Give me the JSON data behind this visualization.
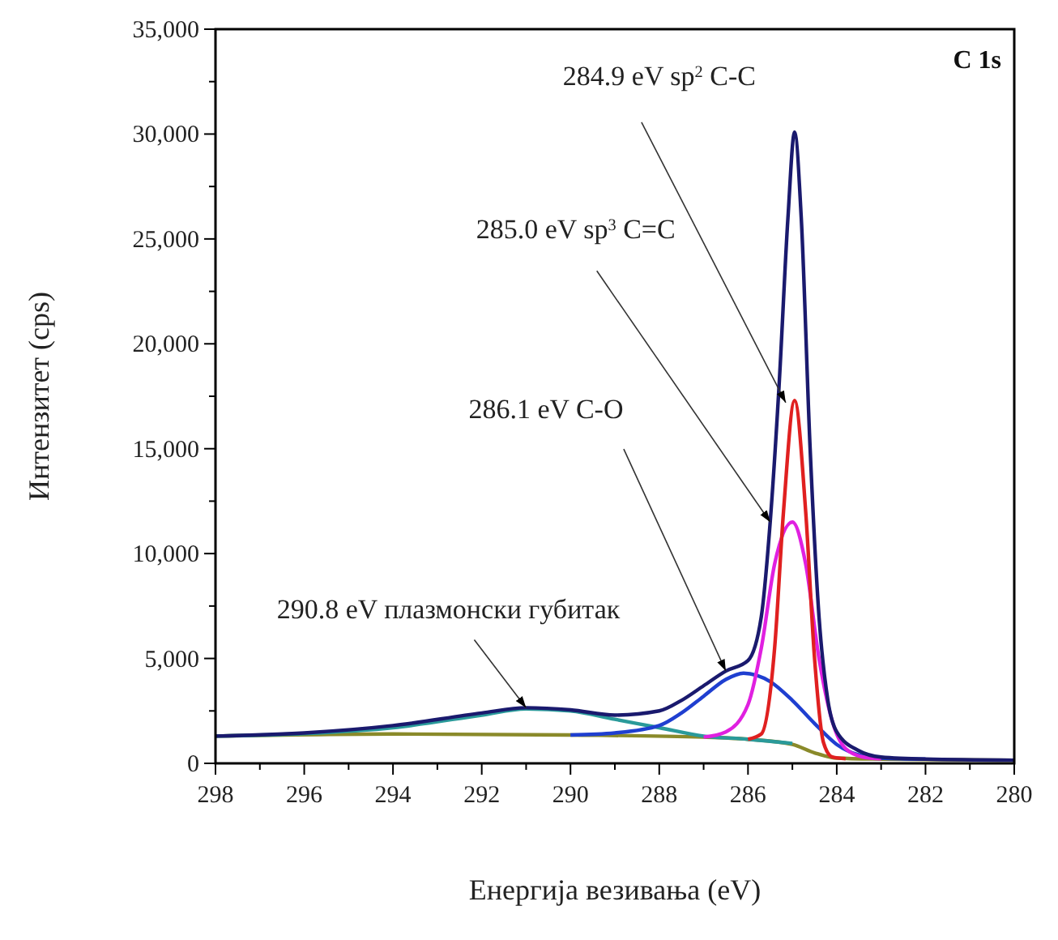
{
  "chart_data": {
    "type": "line",
    "xlabel": "Енергија везивања (eV)",
    "ylabel": "Интензитет (cps)",
    "xlim": [
      298,
      280
    ],
    "ylim": [
      0,
      35000
    ],
    "xticks": [
      298,
      {
        "value": 297,
        "label": null
      },
      296,
      {
        "value": 295,
        "label": null
      },
      294,
      {
        "value": 293,
        "label": null
      },
      292,
      {
        "value": 291,
        "label": null
      },
      290,
      {
        "value": 289,
        "label": null
      },
      288,
      {
        "value": 287,
        "label": null
      },
      286,
      {
        "value": 285,
        "label": null
      },
      284,
      {
        "value": 283,
        "label": null
      },
      282,
      {
        "value": 281,
        "label": null
      },
      280
    ],
    "yticks": [
      {
        "value": 0,
        "label": "0"
      },
      {
        "value": 2500,
        "label": null
      },
      {
        "value": 5000,
        "label": "5,000"
      },
      {
        "value": 7500,
        "label": null
      },
      {
        "value": 10000,
        "label": "10,000"
      },
      {
        "value": 12500,
        "label": null
      },
      {
        "value": 15000,
        "label": "15,000"
      },
      {
        "value": 17500,
        "label": null
      },
      {
        "value": 20000,
        "label": "20,000"
      },
      {
        "value": 22500,
        "label": null
      },
      {
        "value": 25000,
        "label": "25,000"
      },
      {
        "value": 27500,
        "label": null
      },
      {
        "value": 30000,
        "label": "30,000"
      },
      {
        "value": 32500,
        "label": null
      },
      {
        "value": 35000,
        "label": "35,000"
      }
    ],
    "grid": false,
    "marker": "none",
    "line_style": "solid",
    "series": [
      {
        "color": "#8a8a2a",
        "x": [
          298,
          294,
          290,
          287,
          286,
          285,
          284.5,
          284,
          283,
          282,
          280
        ],
        "values": [
          1300,
          1400,
          1350,
          1250,
          1150,
          900,
          500,
          250,
          200,
          180,
          150
        ]
      },
      {
        "color": "#2a9a9a",
        "x": [
          298,
          296,
          294,
          292,
          291,
          290,
          289,
          288,
          287,
          286,
          285
        ],
        "values": [
          1300,
          1420,
          1700,
          2300,
          2600,
          2500,
          2100,
          1700,
          1300,
          1150,
          950
        ]
      },
      {
        "color": "#1f3fd0",
        "x": [
          290,
          289,
          288,
          287.5,
          287,
          286.5,
          286.1,
          285.5,
          285,
          284.5,
          284,
          283.5,
          283,
          282
        ],
        "values": [
          1350,
          1450,
          1800,
          2400,
          3200,
          4000,
          4300,
          3900,
          3000,
          1900,
          900,
          400,
          250,
          200
        ]
      },
      {
        "color": "#e020e0",
        "x": [
          287,
          286.5,
          286,
          285.7,
          285.4,
          285,
          284.7,
          284.4,
          284.1,
          283.8,
          283.4,
          283
        ],
        "values": [
          1250,
          1500,
          2800,
          5500,
          9500,
          11500,
          9500,
          5000,
          2000,
          700,
          300,
          220
        ]
      },
      {
        "color": "#e02020",
        "x": [
          286,
          285.7,
          285.4,
          285.2,
          284.95,
          284.7,
          284.5,
          284.3,
          284.1,
          283.8
        ],
        "values": [
          1150,
          1400,
          5500,
          12000,
          17300,
          12000,
          5000,
          1000,
          300,
          220
        ]
      },
      {
        "color": "#1a1a6e",
        "x": [
          298,
          296,
          294,
          292,
          291,
          290,
          289,
          288,
          287.5,
          287,
          286.5,
          286,
          285.7,
          285.5,
          285.3,
          285.1,
          284.95,
          284.8,
          284.6,
          284.4,
          284.2,
          284,
          283.5,
          283,
          282,
          280
        ],
        "values": [
          1300,
          1450,
          1800,
          2400,
          2650,
          2550,
          2300,
          2500,
          3000,
          3700,
          4400,
          4900,
          7000,
          11500,
          18000,
          26000,
          30100,
          26000,
          15000,
          7000,
          3000,
          1500,
          600,
          300,
          200,
          150
        ]
      }
    ],
    "annotations": [
      "C 1s",
      {
        "text": "284.9 eV sp$^{2}$ C-C",
        "x": 285.15,
        "y": 17200
      },
      {
        "text": "285.0 eV sp$^{3}$ C=C",
        "x": 285.5,
        "y": 11500
      },
      {
        "text": "286.1 eV C-O",
        "x": 286.5,
        "y": 4400
      },
      {
        "text": "290.8 eV плазмонски губитак",
        "x": 291,
        "y": 2650
      }
    ]
  }
}
